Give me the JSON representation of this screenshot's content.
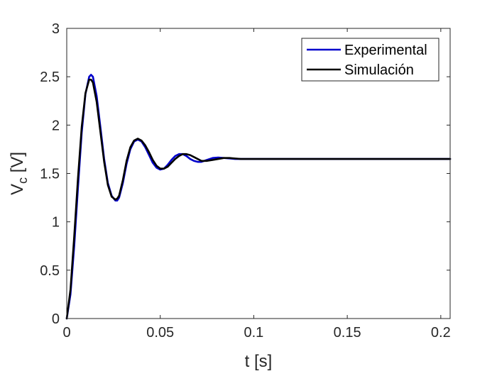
{
  "chart_data": {
    "type": "line",
    "title": "",
    "xlabel": "t [s]",
    "ylabel": {
      "main": "V",
      "sub": "c",
      "unit": " [V]"
    },
    "xlim": [
      0,
      0.205
    ],
    "ylim": [
      0,
      3
    ],
    "xticks": [
      0,
      0.05,
      0.1,
      0.15,
      0.2
    ],
    "xtick_labels": [
      "0",
      "0.05",
      "0.1",
      "0.15",
      "0.2"
    ],
    "yticks": [
      0,
      0.5,
      1,
      1.5,
      2,
      2.5,
      3
    ],
    "ytick_labels": [
      "0",
      "0.5",
      "1",
      "1.5",
      "2",
      "2.5",
      "3"
    ],
    "grid": false,
    "legend_position": "top-right",
    "series": [
      {
        "name": "Experimental",
        "color": "#0000CC",
        "x": [
          0,
          0.002,
          0.004,
          0.006,
          0.008,
          0.01,
          0.012,
          0.013,
          0.014,
          0.016,
          0.018,
          0.02,
          0.022,
          0.024,
          0.026,
          0.027,
          0.028,
          0.03,
          0.032,
          0.034,
          0.036,
          0.038,
          0.04,
          0.042,
          0.044,
          0.046,
          0.048,
          0.05,
          0.052,
          0.054,
          0.056,
          0.058,
          0.06,
          0.062,
          0.064,
          0.066,
          0.068,
          0.07,
          0.072,
          0.075,
          0.078,
          0.081,
          0.084,
          0.087,
          0.09,
          0.095,
          0.1,
          0.11,
          0.12,
          0.15,
          0.205
        ],
        "y": [
          0,
          0.25,
          0.75,
          1.35,
          1.92,
          2.32,
          2.5,
          2.52,
          2.5,
          2.3,
          1.98,
          1.65,
          1.4,
          1.27,
          1.22,
          1.22,
          1.25,
          1.4,
          1.6,
          1.75,
          1.83,
          1.85,
          1.83,
          1.77,
          1.69,
          1.61,
          1.56,
          1.54,
          1.55,
          1.59,
          1.64,
          1.68,
          1.7,
          1.7,
          1.68,
          1.65,
          1.63,
          1.62,
          1.62,
          1.64,
          1.66,
          1.665,
          1.66,
          1.655,
          1.65,
          1.65,
          1.65,
          1.65,
          1.65,
          1.65,
          1.65
        ]
      },
      {
        "name": "Simulación",
        "color": "#000000",
        "x": [
          0,
          0.002,
          0.004,
          0.006,
          0.008,
          0.01,
          0.012,
          0.013,
          0.014,
          0.016,
          0.018,
          0.02,
          0.022,
          0.024,
          0.026,
          0.027,
          0.028,
          0.03,
          0.032,
          0.034,
          0.036,
          0.038,
          0.039,
          0.04,
          0.042,
          0.044,
          0.046,
          0.048,
          0.05,
          0.052,
          0.054,
          0.056,
          0.058,
          0.06,
          0.062,
          0.064,
          0.066,
          0.068,
          0.07,
          0.072,
          0.075,
          0.078,
          0.081,
          0.084,
          0.087,
          0.09,
          0.093,
          0.096,
          0.1,
          0.11,
          0.12,
          0.15,
          0.205
        ],
        "y": [
          0,
          0.3,
          0.85,
          1.45,
          1.98,
          2.33,
          2.47,
          2.47,
          2.44,
          2.24,
          1.93,
          1.62,
          1.38,
          1.26,
          1.23,
          1.24,
          1.27,
          1.43,
          1.63,
          1.77,
          1.84,
          1.86,
          1.85,
          1.84,
          1.79,
          1.72,
          1.64,
          1.58,
          1.55,
          1.55,
          1.57,
          1.61,
          1.65,
          1.68,
          1.7,
          1.7,
          1.69,
          1.67,
          1.65,
          1.63,
          1.63,
          1.64,
          1.65,
          1.66,
          1.66,
          1.655,
          1.65,
          1.65,
          1.65,
          1.65,
          1.65,
          1.65,
          1.65
        ]
      }
    ]
  }
}
